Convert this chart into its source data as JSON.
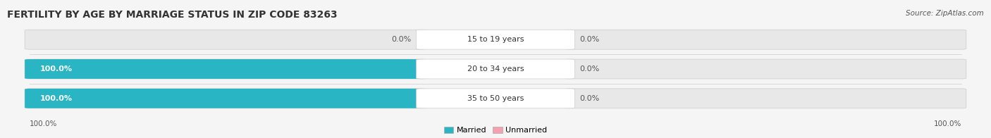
{
  "title": "FERTILITY BY AGE BY MARRIAGE STATUS IN ZIP CODE 83263",
  "source": "Source: ZipAtlas.com",
  "categories": [
    "15 to 19 years",
    "20 to 34 years",
    "35 to 50 years"
  ],
  "married_values": [
    0.0,
    100.0,
    100.0
  ],
  "unmarried_values": [
    0.0,
    0.0,
    0.0
  ],
  "married_color": "#29B5C3",
  "unmarried_color": "#F4A0B0",
  "bar_bg_color": "#e8e8e8",
  "title_fontsize": 10,
  "source_fontsize": 7.5,
  "label_fontsize": 8,
  "tick_fontsize": 7.5,
  "legend_fontsize": 8,
  "background_color": "#f5f5f5",
  "max_value": 100.0,
  "x_left_label": "100.0%",
  "x_right_label": "100.0%"
}
